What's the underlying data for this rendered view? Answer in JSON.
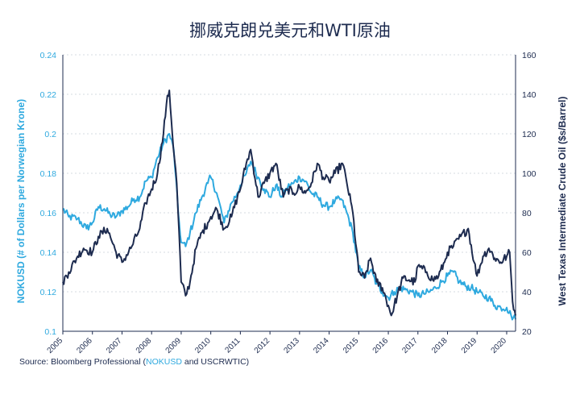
{
  "chart_data": {
    "type": "line",
    "title": "挪威克朗兑美元和WTI原油",
    "source": {
      "prefix": "Source: Bloomberg Professional (",
      "highlight": "NOKUSD",
      "suffix": " and USCRWTIC)"
    },
    "left_axis": {
      "label": "NOKUSD (# of Dollars per Norwegian Krone)",
      "range": [
        0.1,
        0.24
      ],
      "ticks": [
        "0.1",
        "0.12",
        "0.14",
        "0.16",
        "0.18",
        "0.2",
        "0.22",
        "0.24"
      ],
      "color": "#2ea9df"
    },
    "right_axis": {
      "label": "West Texas Intermediate Crude Oil ($s/Barrel)",
      "range": [
        20,
        160
      ],
      "ticks": [
        "20",
        "40",
        "60",
        "80",
        "100",
        "120",
        "140",
        "160"
      ],
      "color": "#1d2b4f"
    },
    "x_axis": {
      "range": [
        2005,
        2020.3
      ],
      "ticks": [
        "2005",
        "2006",
        "2007",
        "2008",
        "2009",
        "2010",
        "2011",
        "2012",
        "2013",
        "2014",
        "2015",
        "2016",
        "2017",
        "2018",
        "2019",
        "2020"
      ]
    },
    "grid": "horizontal dashed",
    "series": [
      {
        "name": "NOKUSD",
        "axis": "left",
        "color": "#2ea9df",
        "x": [
          2005.0,
          2005.2,
          2005.5,
          2005.8,
          2006.0,
          2006.2,
          2006.4,
          2006.6,
          2006.8,
          2007.0,
          2007.2,
          2007.4,
          2007.6,
          2007.8,
          2008.0,
          2008.2,
          2008.4,
          2008.6,
          2008.75,
          2008.9,
          2009.0,
          2009.15,
          2009.3,
          2009.5,
          2009.7,
          2009.9,
          2010.0,
          2010.2,
          2010.45,
          2010.7,
          2010.9,
          2011.0,
          2011.2,
          2011.35,
          2011.6,
          2011.8,
          2012.0,
          2012.2,
          2012.4,
          2012.6,
          2012.8,
          2013.0,
          2013.2,
          2013.4,
          2013.6,
          2013.8,
          2014.0,
          2014.2,
          2014.4,
          2014.6,
          2014.8,
          2015.0,
          2015.2,
          2015.4,
          2015.6,
          2015.8,
          2016.0,
          2016.2,
          2016.4,
          2016.6,
          2016.8,
          2017.0,
          2017.2,
          2017.4,
          2017.6,
          2017.8,
          2018.0,
          2018.2,
          2018.4,
          2018.6,
          2018.8,
          2019.0,
          2019.2,
          2019.4,
          2019.6,
          2019.8,
          2020.0,
          2020.15,
          2020.3
        ],
        "values": [
          0.162,
          0.158,
          0.157,
          0.152,
          0.155,
          0.163,
          0.162,
          0.159,
          0.158,
          0.161,
          0.163,
          0.167,
          0.168,
          0.176,
          0.178,
          0.188,
          0.195,
          0.2,
          0.192,
          0.16,
          0.145,
          0.143,
          0.15,
          0.16,
          0.168,
          0.175,
          0.178,
          0.17,
          0.155,
          0.165,
          0.17,
          0.174,
          0.18,
          0.186,
          0.178,
          0.172,
          0.168,
          0.174,
          0.168,
          0.173,
          0.175,
          0.178,
          0.176,
          0.17,
          0.168,
          0.164,
          0.163,
          0.166,
          0.167,
          0.16,
          0.15,
          0.132,
          0.128,
          0.131,
          0.124,
          0.12,
          0.117,
          0.12,
          0.122,
          0.121,
          0.12,
          0.118,
          0.119,
          0.12,
          0.122,
          0.125,
          0.128,
          0.13,
          0.125,
          0.123,
          0.122,
          0.12,
          0.118,
          0.117,
          0.113,
          0.112,
          0.112,
          0.108,
          0.106
        ]
      },
      {
        "name": "USCRWTIC",
        "axis": "right",
        "color": "#1d2b4f",
        "x": [
          2005.0,
          2005.2,
          2005.5,
          2005.7,
          2006.0,
          2006.2,
          2006.5,
          2006.8,
          2007.0,
          2007.3,
          2007.6,
          2007.8,
          2008.0,
          2008.2,
          2008.4,
          2008.5,
          2008.6,
          2008.7,
          2008.85,
          2009.0,
          2009.15,
          2009.3,
          2009.5,
          2009.7,
          2009.9,
          2010.0,
          2010.2,
          2010.45,
          2010.7,
          2010.9,
          2011.0,
          2011.2,
          2011.35,
          2011.6,
          2011.8,
          2012.0,
          2012.2,
          2012.45,
          2012.6,
          2012.8,
          2013.0,
          2013.2,
          2013.4,
          2013.6,
          2013.8,
          2014.0,
          2014.2,
          2014.45,
          2014.6,
          2014.8,
          2015.0,
          2015.2,
          2015.4,
          2015.6,
          2015.8,
          2016.0,
          2016.1,
          2016.3,
          2016.5,
          2016.7,
          2016.9,
          2017.0,
          2017.3,
          2017.5,
          2017.7,
          2017.9,
          2018.0,
          2018.2,
          2018.45,
          2018.7,
          2018.9,
          2019.0,
          2019.2,
          2019.4,
          2019.6,
          2019.8,
          2020.0,
          2020.1,
          2020.2,
          2020.3
        ],
        "values": [
          45,
          50,
          58,
          62,
          60,
          68,
          72,
          60,
          55,
          62,
          72,
          85,
          92,
          100,
          120,
          135,
          142,
          120,
          95,
          45,
          38,
          45,
          62,
          70,
          75,
          78,
          82,
          72,
          78,
          88,
          92,
          105,
          112,
          88,
          95,
          100,
          105,
          88,
          92,
          90,
          93,
          90,
          95,
          105,
          98,
          96,
          100,
          105,
          95,
          80,
          50,
          47,
          57,
          45,
          42,
          33,
          28,
          38,
          47,
          46,
          45,
          53,
          50,
          46,
          48,
          55,
          60,
          63,
          68,
          72,
          55,
          48,
          58,
          62,
          57,
          55,
          58,
          60,
          35,
          28
        ]
      }
    ]
  }
}
